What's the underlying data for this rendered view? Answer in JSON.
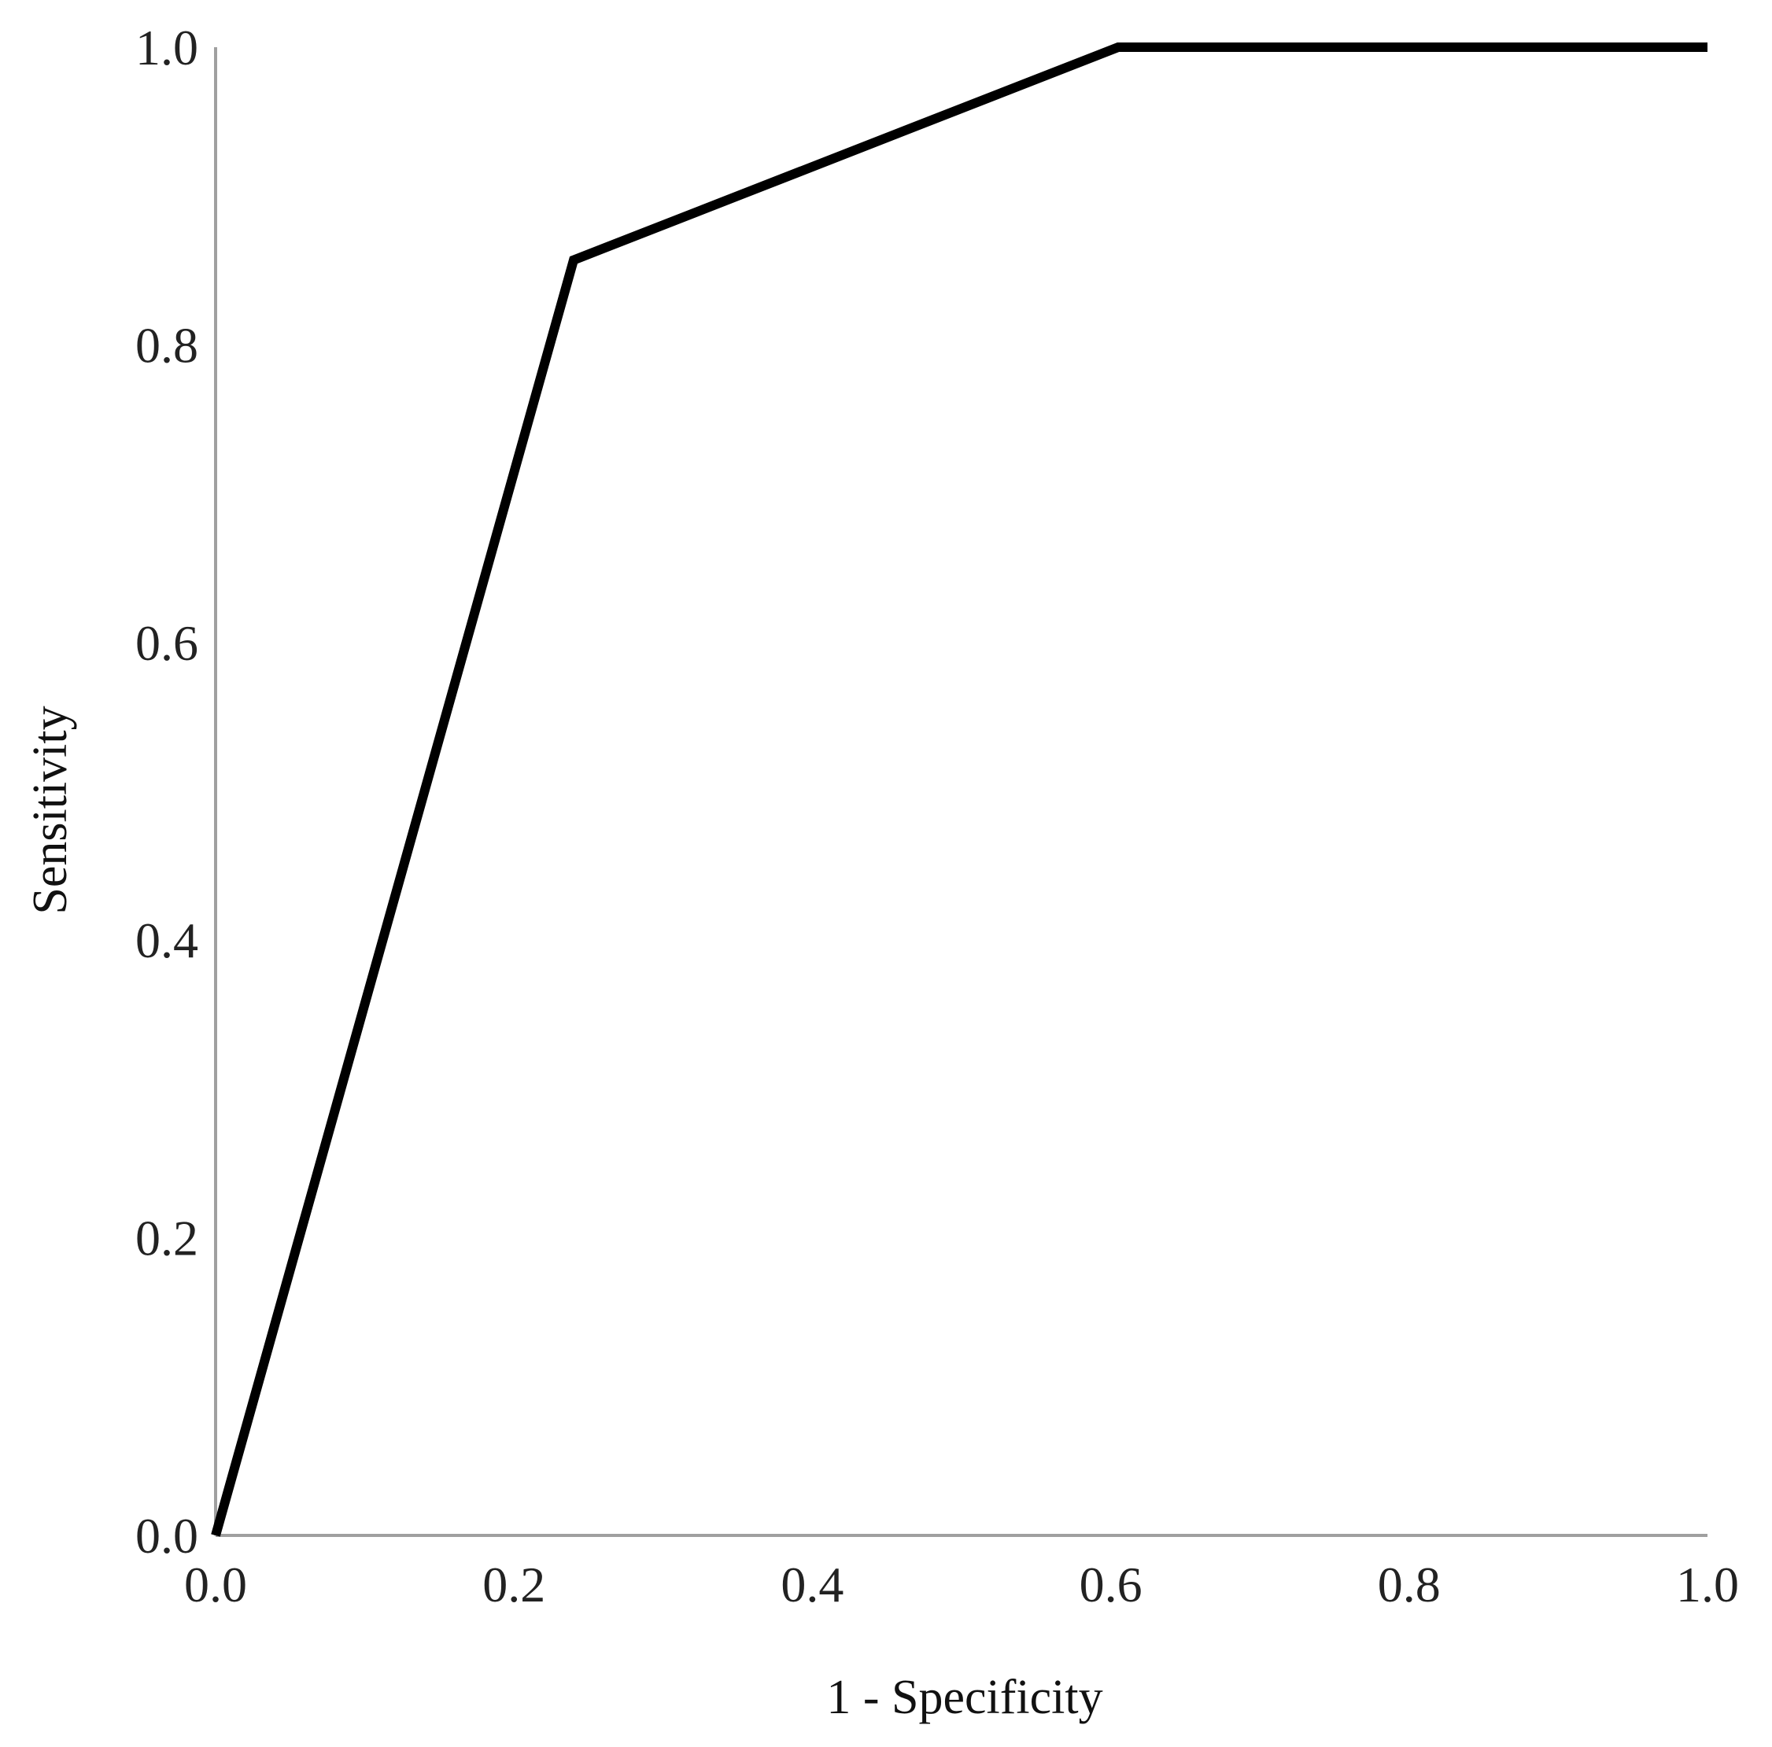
{
  "chart_data": {
    "type": "line",
    "title": "",
    "xlabel": "1 - Specificity",
    "ylabel": "Sensitivity",
    "xlim": [
      0.0,
      1.0
    ],
    "ylim": [
      0.0,
      1.0
    ],
    "x_ticks": [
      "0.0",
      "0.2",
      "0.4",
      "0.6",
      "0.8",
      "1.0"
    ],
    "y_ticks": [
      "0.0",
      "0.2",
      "0.4",
      "0.6",
      "0.8",
      "1.0"
    ],
    "grid": false,
    "legend": "none",
    "colors": {
      "line": "#000000",
      "axis": "#a0a0a0",
      "background": "#ffffff"
    },
    "series": [
      {
        "x": [
          0.0,
          0.24,
          0.605,
          1.0
        ],
        "y": [
          0.0,
          0.857,
          1.0,
          1.0
        ]
      }
    ]
  }
}
